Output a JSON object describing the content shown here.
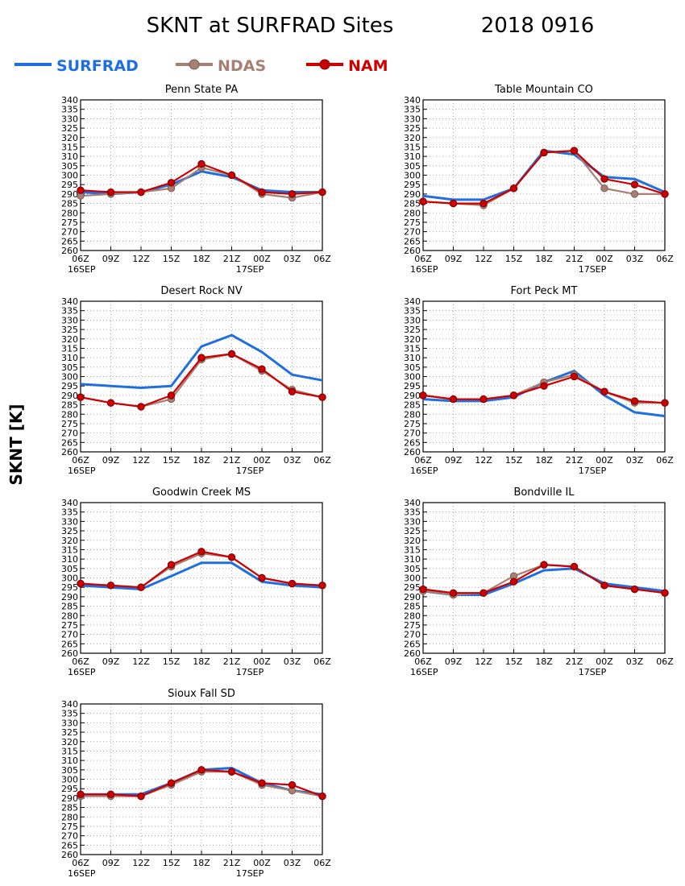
{
  "title": "SKNT at SURFRAD Sites",
  "date": "2018 0916",
  "ylabel": "SKNT [K]",
  "legend": [
    {
      "name": "SURFRAD",
      "color": "#1f6fe0",
      "marker": "none"
    },
    {
      "name": "NDAS",
      "color": "#a87f73",
      "marker": "circle"
    },
    {
      "name": "NAM",
      "color": "#cc0000",
      "marker": "circle"
    }
  ],
  "axes": {
    "x_ticks": [
      "06Z",
      "09Z",
      "12Z",
      "15Z",
      "18Z",
      "21Z",
      "00Z",
      "03Z",
      "06Z"
    ],
    "x_sub": [
      "16SEP",
      "17SEP"
    ],
    "y_ticks": [
      "260",
      "265",
      "270",
      "275",
      "280",
      "285",
      "290",
      "295",
      "300",
      "305",
      "310",
      "315",
      "320",
      "325",
      "330",
      "335",
      "340"
    ]
  },
  "chart_data": [
    {
      "type": "line",
      "title": "Penn State PA",
      "ylim": [
        260,
        340
      ],
      "grid": true,
      "x": [
        "06Z",
        "09Z",
        "12Z",
        "15Z",
        "18Z",
        "21Z",
        "00Z",
        "03Z",
        "06Z"
      ],
      "series": [
        {
          "name": "SURFRAD",
          "values": [
            291,
            290,
            291,
            295,
            302,
            299,
            292,
            291,
            291
          ]
        },
        {
          "name": "NDAS",
          "values": [
            289,
            290,
            291,
            293,
            304,
            300,
            290,
            288,
            291
          ]
        },
        {
          "name": "NAM",
          "values": [
            292,
            291,
            291,
            296,
            306,
            300,
            291,
            290,
            291
          ]
        }
      ]
    },
    {
      "type": "line",
      "title": "Table Mountain CO",
      "ylim": [
        260,
        340
      ],
      "grid": true,
      "x": [
        "06Z",
        "09Z",
        "12Z",
        "15Z",
        "18Z",
        "21Z",
        "00Z",
        "03Z",
        "06Z"
      ],
      "series": [
        {
          "name": "SURFRAD",
          "values": [
            289,
            287,
            287,
            293,
            313,
            311,
            299,
            298,
            291
          ]
        },
        {
          "name": "NDAS",
          "values": [
            286,
            285,
            284,
            293,
            312,
            313,
            293,
            290,
            290
          ]
        },
        {
          "name": "NAM",
          "values": [
            286,
            285,
            285,
            293,
            312,
            313,
            298,
            295,
            290
          ]
        }
      ]
    },
    {
      "type": "line",
      "title": "Desert Rock NV",
      "ylim": [
        260,
        340
      ],
      "grid": true,
      "x": [
        "06Z",
        "09Z",
        "12Z",
        "15Z",
        "18Z",
        "21Z",
        "00Z",
        "03Z",
        "06Z"
      ],
      "series": [
        {
          "name": "SURFRAD",
          "values": [
            296,
            295,
            294,
            295,
            316,
            322,
            313,
            301,
            298
          ]
        },
        {
          "name": "NDAS",
          "values": [
            289,
            286,
            284,
            288,
            309,
            312,
            303,
            293,
            289
          ]
        },
        {
          "name": "NAM",
          "values": [
            289,
            286,
            284,
            290,
            310,
            312,
            304,
            292,
            289
          ]
        }
      ]
    },
    {
      "type": "line",
      "title": "Fort Peck MT",
      "ylim": [
        260,
        340
      ],
      "grid": true,
      "x": [
        "06Z",
        "09Z",
        "12Z",
        "15Z",
        "18Z",
        "21Z",
        "00Z",
        "03Z",
        "06Z"
      ],
      "series": [
        {
          "name": "SURFRAD",
          "values": [
            288,
            287,
            287,
            289,
            297,
            303,
            290,
            281,
            279
          ]
        },
        {
          "name": "NDAS",
          "values": [
            290,
            288,
            288,
            290,
            297,
            301,
            292,
            286,
            286
          ]
        },
        {
          "name": "NAM",
          "values": [
            290,
            288,
            288,
            290,
            295,
            300,
            292,
            287,
            286
          ]
        }
      ]
    },
    {
      "type": "line",
      "title": "Goodwin Creek MS",
      "ylim": [
        260,
        340
      ],
      "grid": true,
      "x": [
        "06Z",
        "09Z",
        "12Z",
        "15Z",
        "18Z",
        "21Z",
        "00Z",
        "03Z",
        "06Z"
      ],
      "series": [
        {
          "name": "SURFRAD",
          "values": [
            296,
            295,
            294,
            301,
            308,
            308,
            298,
            296,
            295
          ]
        },
        {
          "name": "NDAS",
          "values": [
            297,
            296,
            295,
            306,
            313,
            311,
            300,
            297,
            296
          ]
        },
        {
          "name": "NAM",
          "values": [
            297,
            296,
            295,
            307,
            314,
            311,
            300,
            297,
            296
          ]
        }
      ]
    },
    {
      "type": "line",
      "title": "Bondville IL",
      "ylim": [
        260,
        340
      ],
      "grid": true,
      "x": [
        "06Z",
        "09Z",
        "12Z",
        "15Z",
        "18Z",
        "21Z",
        "00Z",
        "03Z",
        "06Z"
      ],
      "series": [
        {
          "name": "SURFRAD",
          "values": [
            293,
            291,
            291,
            297,
            304,
            305,
            297,
            295,
            293
          ]
        },
        {
          "name": "NDAS",
          "values": [
            293,
            291,
            292,
            301,
            307,
            306,
            296,
            294,
            292
          ]
        },
        {
          "name": "NAM",
          "values": [
            294,
            292,
            292,
            298,
            307,
            306,
            296,
            294,
            292
          ]
        }
      ]
    },
    {
      "type": "line",
      "title": "Sioux Fall SD",
      "ylim": [
        260,
        340
      ],
      "grid": true,
      "x": [
        "06Z",
        "09Z",
        "12Z",
        "15Z",
        "18Z",
        "21Z",
        "00Z",
        "03Z",
        "06Z"
      ],
      "series": [
        {
          "name": "SURFRAD",
          "values": [
            292,
            292,
            292,
            298,
            305,
            306,
            298,
            294,
            292
          ]
        },
        {
          "name": "NDAS",
          "values": [
            291,
            291,
            291,
            297,
            304,
            304,
            297,
            294,
            291
          ]
        },
        {
          "name": "NAM",
          "values": [
            292,
            292,
            291,
            298,
            305,
            304,
            298,
            297,
            291
          ]
        }
      ]
    }
  ]
}
